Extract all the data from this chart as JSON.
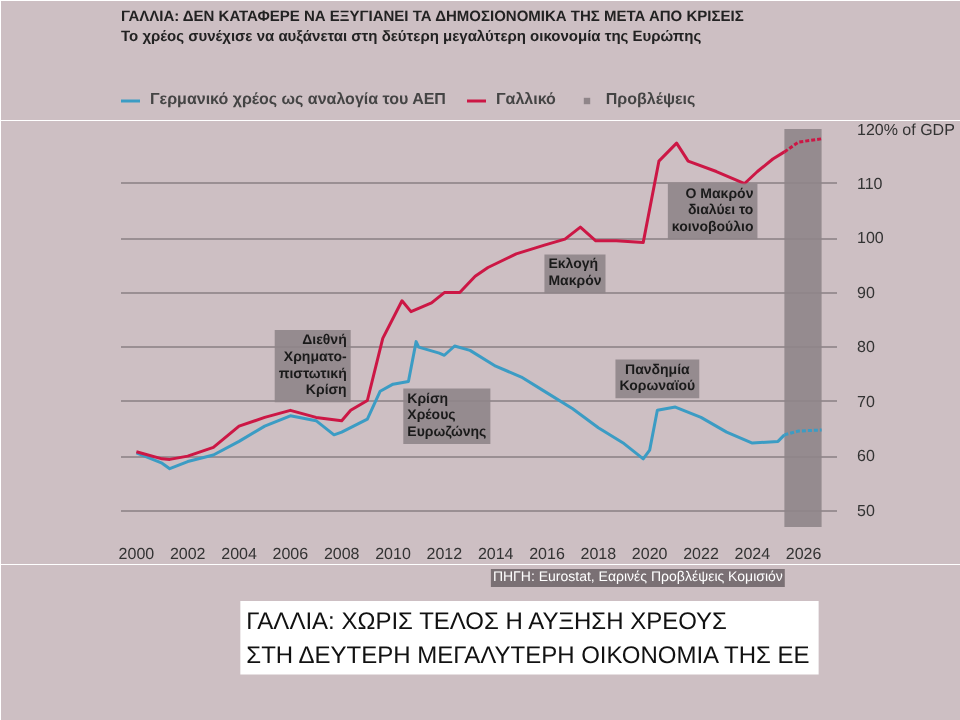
{
  "chart_data": {
    "type": "line",
    "title": "ΓΑΛΛΙΑ: ΔΕΝ ΚΑΤΑΦΕΡΕ ΝΑ ΕΞΥΓΙΑΝΕΙ ΤΑ ΔΗΜΟΣΙΟΝΟΜΙΚΑ ΤΗΣ ΜΕΤΑ ΑΠΟ ΚΡΙΣΕΙΣ",
    "subtitle": "Το χρέος συνέχισε να αυξάνεται στη δεύτερη μεγαλύτερη οικονομία της Ευρώπης",
    "series": [
      {
        "name": "Γερμανικό χρέος ως αναλογία του ΑΕΠ",
        "color": "#3b9cc4",
        "x": [
          2000,
          2001,
          2001.3,
          2002,
          2003,
          2004,
          2005,
          2006,
          2007,
          2007.7,
          2008,
          2009,
          2009.5,
          2010,
          2010.6,
          2010.9,
          2011,
          2011.8,
          2012,
          2012.4,
          2013,
          2014,
          2015,
          2016,
          2017,
          2018,
          2019,
          2019.75,
          2020,
          2020.3,
          2021,
          2022,
          2023,
          2024,
          2025,
          2025.25
        ],
        "values": [
          60.6,
          58.7,
          57.7,
          59,
          60.2,
          62.7,
          65.5,
          67.4,
          66.5,
          63.9,
          64.4,
          66.8,
          71.9,
          73.2,
          73.7,
          81,
          80,
          78.9,
          78.5,
          80.2,
          79.4,
          76.5,
          74.5,
          71.6,
          68.7,
          65.2,
          62.3,
          59.5,
          61.1,
          68.4,
          69,
          67.1,
          64.4,
          62.4,
          62.7,
          63.9
        ]
      },
      {
        "color": "#3b9cc4",
        "line_style": "dotted",
        "x": [
          2025.25,
          2025.8,
          2026.7
        ],
        "values": [
          63.9,
          64.6,
          64.8
        ]
      },
      {
        "name": "Γαλλικό",
        "color": "#cc1745",
        "x": [
          2000,
          2001,
          2001.3,
          2002,
          2003,
          2004,
          2005,
          2006,
          2007,
          2008,
          2008.35,
          2009,
          2009.6,
          2010.35,
          2010.7,
          2011.5,
          2012,
          2012.6,
          2013.2,
          2013.7,
          2014.8,
          2015.9,
          2016.7,
          2017.3,
          2017.9,
          2018.7,
          2019.75,
          2020.36,
          2021.05,
          2021.5,
          2022.6,
          2023.7,
          2024.2,
          2024.8,
          2025.25
        ],
        "values": [
          60.8,
          59.5,
          59.4,
          60,
          61.6,
          65.5,
          67.1,
          68.4,
          67.1,
          66.5,
          68.4,
          70.2,
          81.6,
          88.5,
          86.5,
          88.1,
          90,
          90,
          93,
          94.6,
          97.1,
          98.7,
          99.8,
          102,
          99.5,
          99.5,
          99.2,
          114.1,
          117.4,
          114.1,
          112.2,
          110,
          112.2,
          114.5,
          115.8
        ]
      },
      {
        "color": "#cc1745",
        "line_style": "dotted",
        "x": [
          2025.25,
          2025.8,
          2026.7
        ],
        "values": [
          115.8,
          117.6,
          118.2
        ]
      }
    ],
    "bands": [
      {
        "axis": "x",
        "from": 2025.25,
        "to": 2026.7,
        "label": "Προβλέψεις",
        "color": "#8f8589"
      }
    ],
    "xlim": [
      1999.4,
      2027.3
    ],
    "xticks": [
      2000,
      2002,
      2004,
      2006,
      2008,
      2010,
      2012,
      2014,
      2016,
      2018,
      2020,
      2022,
      2024,
      2026
    ],
    "ylim": [
      47,
      120
    ],
    "yticks": [
      50,
      60,
      70,
      80,
      90,
      100,
      110,
      {
        "value": 120,
        "label": "120% of GDP"
      }
    ],
    "grid": "y",
    "legend": "top left",
    "annotations": [
      {
        "text": "Διεθνή\nΧρηματο-\nπιστωτική\nΚρίση",
        "x": 2008.35,
        "y": 68.4
      },
      {
        "text": "Κρίση\nΧρέους\nΕυρωζώνης",
        "x": 2010.4,
        "y": 72.4
      },
      {
        "text": "Πανδημία\nΚορωναϊού",
        "x": 2020.3,
        "y": 68.4
      },
      {
        "text": "Εκλογή\nΜακρόν",
        "x": 2015.9,
        "y": 97
      },
      {
        "text": "Ο Μακρόν\nδιαλύει το\nκοινοβούλιο",
        "x": 2024.2,
        "y": 112.2
      },
      "ΠΗΓΗ: Eurostat, Εαρινές Προβλέψεις Κομισιόν",
      "ΓΑΛΛΙΑ: ΧΩΡΙΣ ΤΕΛΟΣ Η ΑΥΞΗΣΗ ΧΡΕΟΥΣ\nΣΤΗ ΔΕΥΤΕΡΗ ΜΕΓΑΛΥΤΕΡΗ ΟΙΚΟΝΟΜΙΑ ΤΗΣ ΕΕ"
    ]
  }
}
